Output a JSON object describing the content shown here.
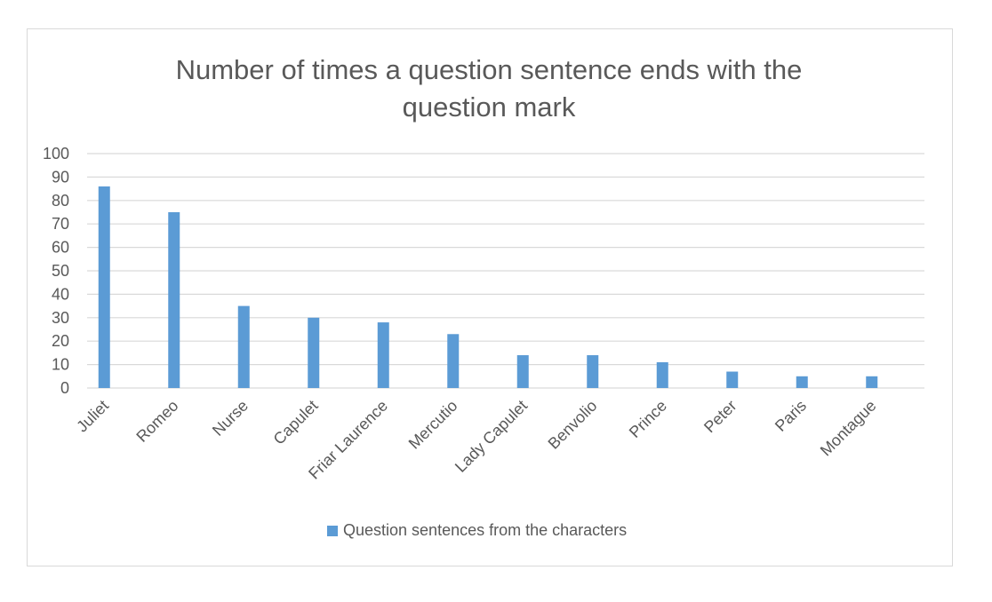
{
  "chart_data": {
    "type": "bar",
    "title": "Number of times a question sentence ends with the question mark",
    "title_lines": [
      "Number of times a question sentence ends with the",
      "question mark"
    ],
    "xlabel": "",
    "ylabel": "",
    "categories": [
      "Juliet",
      "Romeo",
      "Nurse",
      "Capulet",
      "Friar Laurence",
      "Mercutio",
      "Lady Capulet",
      "Benvolio",
      "Prince",
      "Peter",
      "Paris",
      "Montague"
    ],
    "series": [
      {
        "name": "Question sentences from the characters",
        "color": "#5b9bd5",
        "values": [
          86,
          75,
          35,
          30,
          28,
          23,
          14,
          14,
          11,
          7,
          5,
          5
        ]
      }
    ],
    "ylim": [
      0,
      100
    ],
    "yticks": [
      0,
      10,
      20,
      30,
      40,
      50,
      60,
      70,
      80,
      90,
      100
    ],
    "grid": true,
    "legend_position": "bottom"
  },
  "colors": {
    "bar": "#5b9bd5",
    "grid": "#d9d9d9",
    "text": "#595959"
  }
}
